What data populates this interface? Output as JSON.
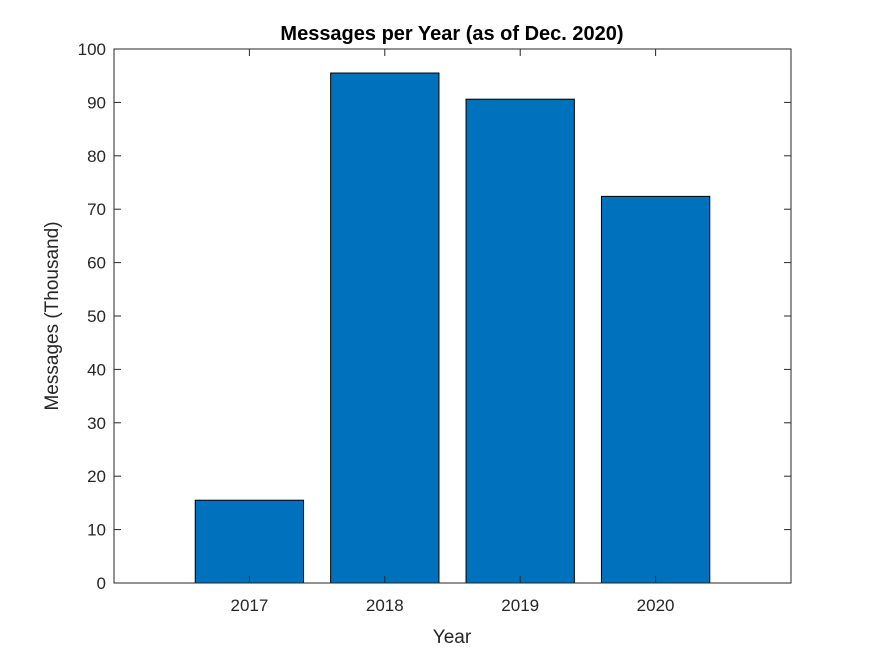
{
  "chart_data": {
    "type": "bar",
    "title": "Messages per Year (as of Dec. 2020)",
    "xlabel": "Year",
    "ylabel": "Messages (Thousand)",
    "categories": [
      "2017",
      "2018",
      "2019",
      "2020"
    ],
    "values": [
      15.5,
      95.5,
      90.6,
      72.4
    ],
    "ylim": [
      0,
      100
    ],
    "yticks": [
      0,
      10,
      20,
      30,
      40,
      50,
      60,
      70,
      80,
      90,
      100
    ],
    "bar_color": "#0072BD",
    "grid": false,
    "legend": "none"
  }
}
